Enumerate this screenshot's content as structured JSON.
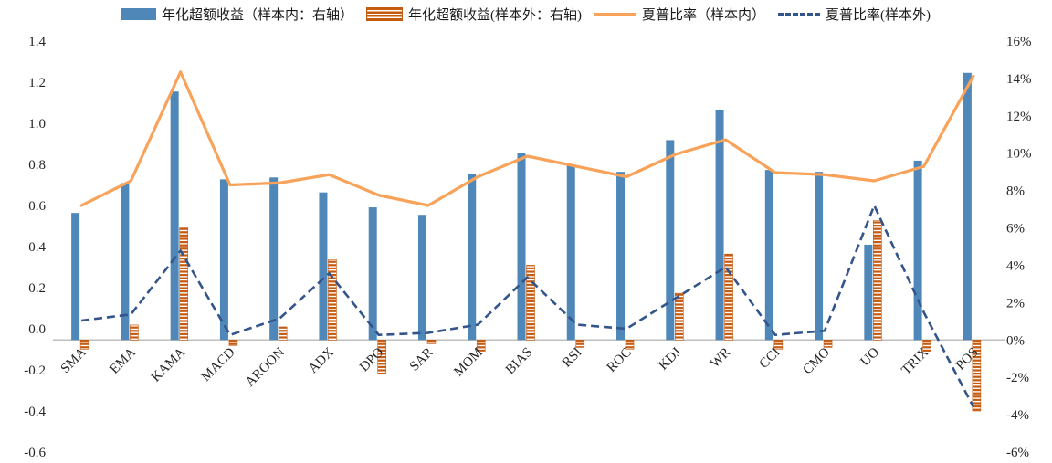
{
  "chart_data": {
    "type": "bar",
    "subtype": "combo-bar-line-dual-axis",
    "categories": [
      "SMA",
      "EMA",
      "KAMA",
      "MACD",
      "AROON",
      "ADX",
      "DPO",
      "SAR",
      "MOM",
      "BIAS",
      "RSI",
      "ROC",
      "KDJ",
      "WR",
      "CCI",
      "CMO",
      "UO",
      "TRIX",
      "POS"
    ],
    "series": [
      {
        "name": "年化超额收益（样本内：右轴）",
        "type": "bar",
        "axis": "right",
        "unit": "%",
        "color": "#4E87B8",
        "values": [
          6.8,
          8.4,
          13.3,
          8.6,
          8.7,
          7.9,
          7.1,
          6.7,
          8.9,
          10.0,
          9.4,
          9.0,
          10.7,
          12.3,
          9.1,
          9.0,
          5.1,
          9.6,
          14.3
        ]
      },
      {
        "name": "年化超额收益(样本外：右轴)",
        "type": "bar",
        "axis": "right",
        "unit": "%",
        "color": "#C55A11",
        "pattern": "horizontal-stripes",
        "values": [
          -0.5,
          0.8,
          6.0,
          -0.3,
          0.7,
          4.3,
          -1.8,
          -0.2,
          -0.6,
          4.0,
          -0.4,
          -0.5,
          2.5,
          4.6,
          -0.5,
          -0.4,
          6.4,
          -0.7,
          -3.8
        ]
      },
      {
        "name": "夏普比率（样本内）",
        "type": "line",
        "axis": "left",
        "color": "#F8A25A",
        "values": [
          0.6,
          0.72,
          1.25,
          0.7,
          0.71,
          0.75,
          0.65,
          0.6,
          0.74,
          0.84,
          0.79,
          0.74,
          0.85,
          0.92,
          0.76,
          0.75,
          0.72,
          0.79,
          1.23
        ]
      },
      {
        "name": "夏普比率(样本外)",
        "type": "line-dashed",
        "axis": "left",
        "color": "#34558B",
        "values": [
          0.04,
          0.07,
          0.38,
          -0.03,
          0.05,
          0.27,
          -0.03,
          -0.02,
          0.02,
          0.25,
          0.02,
          0.0,
          0.15,
          0.3,
          -0.03,
          -0.01,
          0.6,
          0.08,
          -0.38
        ]
      }
    ],
    "left_axis": {
      "min": -0.6,
      "max": 1.4,
      "ticks": [
        "1.4",
        "1.2",
        "1.0",
        "0.8",
        "0.6",
        "0.4",
        "0.2",
        "0.0",
        "-0.2",
        "-0.4",
        "-0.6"
      ]
    },
    "right_axis": {
      "min": -6,
      "max": 16,
      "ticks": [
        "16%",
        "14%",
        "12%",
        "10%",
        "8%",
        "6%",
        "4%",
        "2%",
        "0%",
        "-2%",
        "-4%",
        "-6%"
      ]
    },
    "title": "",
    "xlabel": "",
    "ylabel": "",
    "grid": "off",
    "legend_position": "top",
    "baseline_color": "#BFBFBF",
    "tick_label_color": "#262626"
  }
}
